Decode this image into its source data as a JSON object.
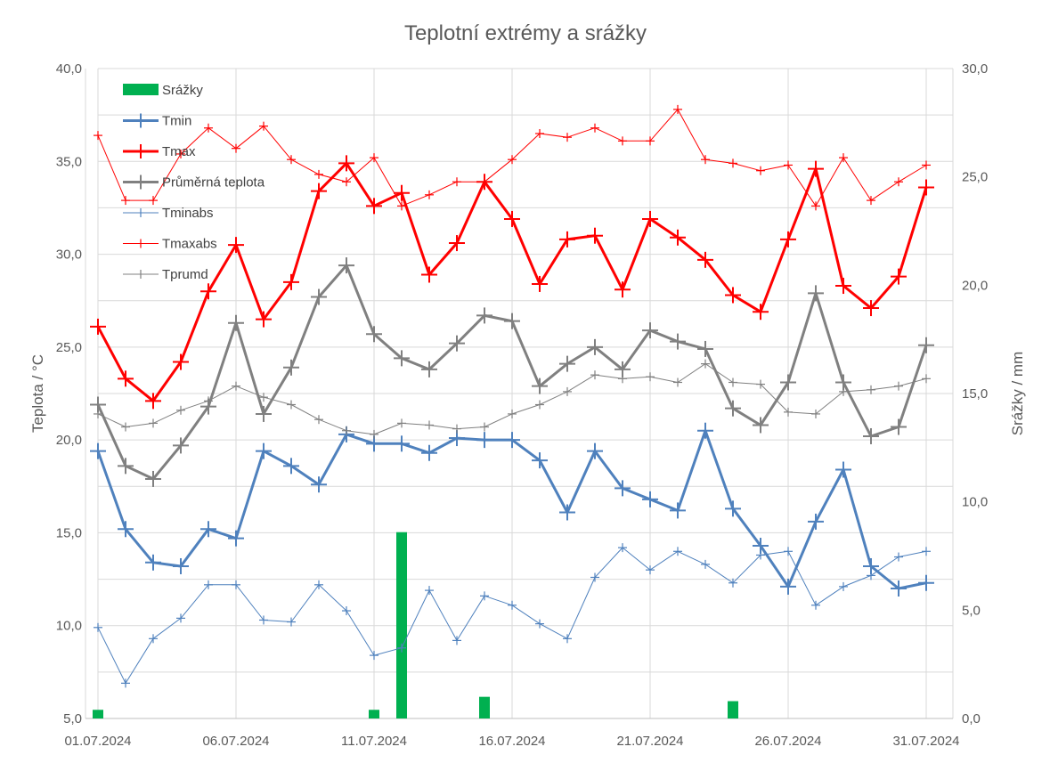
{
  "chart_data": {
    "type": "line",
    "title": "Teplotní extrémy a srážky",
    "ylabel": "Teplota / °C",
    "y2label": "Srážky / mm",
    "ylim": [
      5,
      40
    ],
    "y2lim": [
      0,
      30
    ],
    "y_ticks": [
      "5,0",
      "10,0",
      "15,0",
      "20,0",
      "25,0",
      "30,0",
      "35,0",
      "40,0"
    ],
    "y2_ticks": [
      "0,0",
      "5,0",
      "10,0",
      "15,0",
      "20,0",
      "25,0",
      "30,0"
    ],
    "x_ticks": [
      "01.07.2024",
      "06.07.2024",
      "11.07.2024",
      "16.07.2024",
      "21.07.2024",
      "26.07.2024",
      "31.07.2024"
    ],
    "x_tick_days": [
      1,
      6,
      11,
      16,
      21,
      26,
      31
    ],
    "days": [
      1,
      2,
      3,
      4,
      5,
      6,
      7,
      8,
      9,
      10,
      11,
      12,
      13,
      14,
      15,
      16,
      17,
      18,
      19,
      20,
      21,
      22,
      23,
      24,
      25,
      26,
      27,
      28,
      29,
      30,
      31
    ],
    "grid": true,
    "legend_position": "top-left",
    "series": [
      {
        "name": "Srážky",
        "kind": "bar",
        "axis": "right",
        "color": "#00b050",
        "values": [
          0.4,
          0,
          0,
          0,
          0,
          0,
          0,
          0,
          0,
          0,
          0.4,
          8.6,
          0,
          0,
          1.0,
          0,
          0,
          0,
          0,
          0,
          0,
          0,
          0,
          0.8,
          0,
          0,
          0,
          0,
          0,
          0,
          0
        ]
      },
      {
        "name": "Tmin",
        "kind": "line",
        "color": "#4f81bd",
        "width": 3,
        "values": [
          19.4,
          15.2,
          13.4,
          13.2,
          15.2,
          14.7,
          19.4,
          18.6,
          17.6,
          20.3,
          19.8,
          19.8,
          19.3,
          20.1,
          20.0,
          20.0,
          18.9,
          16.1,
          19.4,
          17.4,
          16.8,
          16.2,
          20.5,
          16.3,
          14.3,
          12.1,
          15.6,
          18.4,
          13.2,
          12.0,
          12.3
        ]
      },
      {
        "name": "Tmax",
        "kind": "line",
        "color": "#ff0000",
        "width": 3,
        "values": [
          26.1,
          23.3,
          22.1,
          24.2,
          28.0,
          30.5,
          26.5,
          28.5,
          33.4,
          34.9,
          32.6,
          33.3,
          28.9,
          30.6,
          33.9,
          31.9,
          28.4,
          30.8,
          31.0,
          28.1,
          31.9,
          30.9,
          29.7,
          27.8,
          26.9,
          30.8,
          34.6,
          28.3,
          27.1,
          28.8,
          33.6
        ]
      },
      {
        "name": "Průměrná teplota",
        "kind": "line",
        "color": "#808080",
        "width": 3,
        "values": [
          21.9,
          18.6,
          17.9,
          19.7,
          21.8,
          26.3,
          21.4,
          23.9,
          27.7,
          29.4,
          25.7,
          24.4,
          23.8,
          25.2,
          26.7,
          26.4,
          22.9,
          24.1,
          25.0,
          23.8,
          25.9,
          25.3,
          24.9,
          21.7,
          20.8,
          23.1,
          27.9,
          23.1,
          20.2,
          20.7,
          25.1
        ]
      },
      {
        "name": "Tminabs",
        "kind": "line",
        "color": "#4f81bd",
        "width": 1,
        "values": [
          9.9,
          6.9,
          9.3,
          10.4,
          12.2,
          12.2,
          10.3,
          10.2,
          12.2,
          10.8,
          8.4,
          8.8,
          11.9,
          9.2,
          11.6,
          11.1,
          10.1,
          9.3,
          12.6,
          14.2,
          13.0,
          14.0,
          13.3,
          12.3,
          13.8,
          14.0,
          11.1,
          12.1,
          12.7,
          13.7,
          14.0
        ]
      },
      {
        "name": "Tmaxabs",
        "kind": "line",
        "color": "#ff0000",
        "width": 1,
        "values": [
          36.4,
          32.9,
          32.9,
          35.4,
          36.8,
          35.7,
          36.9,
          35.1,
          34.3,
          33.9,
          35.2,
          32.6,
          33.2,
          33.9,
          33.9,
          35.1,
          36.5,
          36.3,
          36.8,
          36.1,
          36.1,
          37.8,
          35.1,
          34.9,
          34.5,
          34.8,
          32.6,
          35.2,
          32.9,
          33.9,
          34.8
        ]
      },
      {
        "name": "Tprumd",
        "kind": "line",
        "color": "#808080",
        "width": 1,
        "values": [
          21.4,
          20.7,
          20.9,
          21.6,
          22.1,
          22.9,
          22.3,
          21.9,
          21.1,
          20.5,
          20.3,
          20.9,
          20.8,
          20.6,
          20.7,
          21.4,
          21.9,
          22.6,
          23.5,
          23.3,
          23.4,
          23.1,
          24.1,
          23.1,
          23.0,
          21.5,
          21.4,
          22.6,
          22.7,
          22.9,
          23.3
        ]
      }
    ]
  }
}
